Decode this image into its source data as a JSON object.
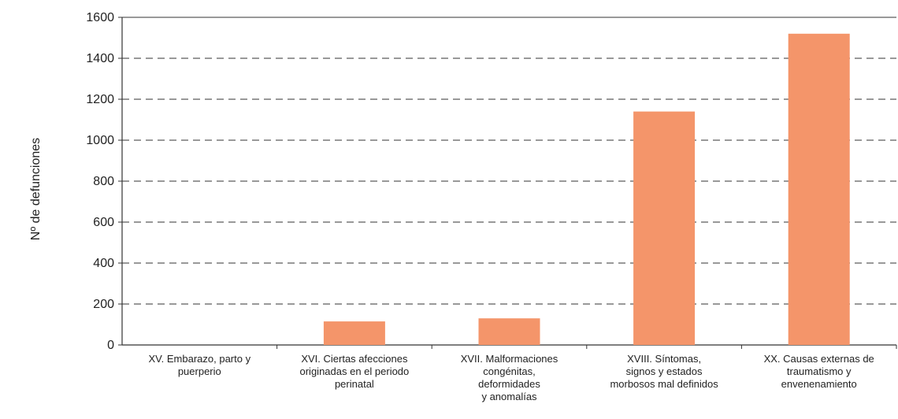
{
  "chart_data": {
    "type": "bar",
    "title": "",
    "xlabel": "",
    "ylabel": "Nº de defunciones",
    "ylim": [
      0,
      1600
    ],
    "yticks": [
      0,
      200,
      400,
      600,
      800,
      1000,
      1200,
      1400,
      1600
    ],
    "grid": "horizontal-dashed",
    "legend": "none",
    "bar_color": "#F4956A",
    "categories": [
      [
        "XV. Embarazo, parto y",
        "puerperio"
      ],
      [
        "XVI. Ciertas afecciones",
        "originadas en el periodo",
        "perinatal"
      ],
      [
        "XVII. Malformaciones",
        "congénitas,",
        "deformidades",
        "y anomalías"
      ],
      [
        "XVIII. Síntomas,",
        "signos y estados",
        "morbosos mal definidos"
      ],
      [
        "XX. Causas externas de",
        "traumatismo y",
        "envenenamiento"
      ]
    ],
    "values": [
      0,
      115,
      130,
      1140,
      1520
    ]
  }
}
